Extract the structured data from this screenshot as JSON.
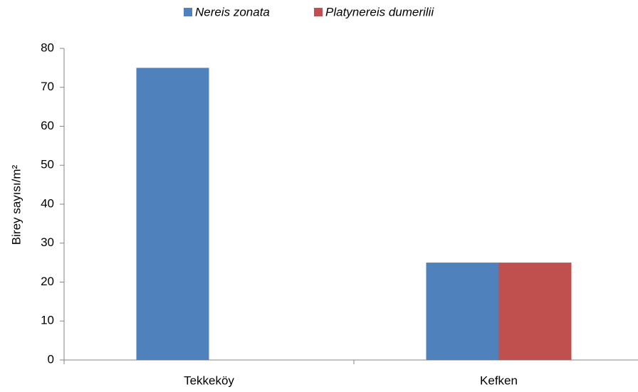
{
  "chart_data": {
    "type": "bar",
    "categories": [
      "Tekkeköy",
      "Kefken"
    ],
    "series": [
      {
        "name": "Nereis zonata",
        "color": "#4f81bd",
        "values": [
          75,
          25
        ]
      },
      {
        "name": "Platynereis dumerilii",
        "color": "#c0504d",
        "values": [
          0,
          25
        ]
      }
    ],
    "y_label": "Birey sayısı/m²",
    "ylim": [
      0,
      80
    ],
    "yticks": [
      0,
      10,
      20,
      30,
      40,
      50,
      60,
      70,
      80
    ],
    "grid": false,
    "legend": "top"
  }
}
